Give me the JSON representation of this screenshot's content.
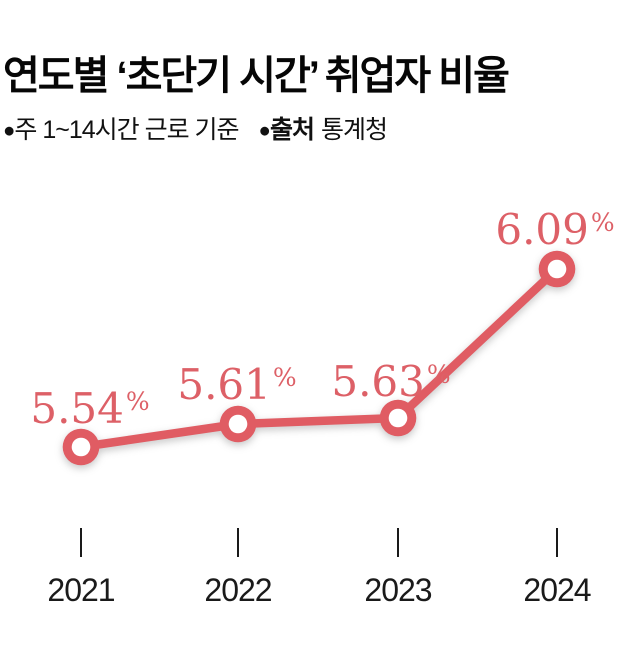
{
  "header": {
    "title": "연도별 ‘초단기 시간’ 취업자 비율",
    "note_bullet": "●",
    "note": "주 1~14시간 근로 기준",
    "source_bullet": "●",
    "source_label": "출처",
    "source_value": "통계청"
  },
  "chart_data": {
    "type": "line",
    "title": "연도별 ‘초단기 시간’ 취업자 비율",
    "note": "주 1~14시간 근로 기준 (weekly 1~14 hours worked)",
    "source": "통계청",
    "categories": [
      "2021",
      "2022",
      "2023",
      "2024"
    ],
    "values": [
      5.54,
      5.61,
      5.63,
      6.09
    ],
    "unit": "%",
    "percent_sign": "%",
    "value_labels": [
      "5.54",
      "5.61",
      "5.63",
      "6.09"
    ],
    "ylim": [
      5.4,
      6.2
    ],
    "grid": "off",
    "legend": "none",
    "marker": "hollow-circle",
    "colors": {
      "line": "#e05c63",
      "marker_ring": "#e05c63",
      "marker_center": "#ffffff",
      "value_label_text": "#dd6067",
      "axis_text": "#1a1a1a",
      "tick": "#1a1a1a",
      "title_text": "#060606",
      "background": "#ffffff"
    }
  }
}
